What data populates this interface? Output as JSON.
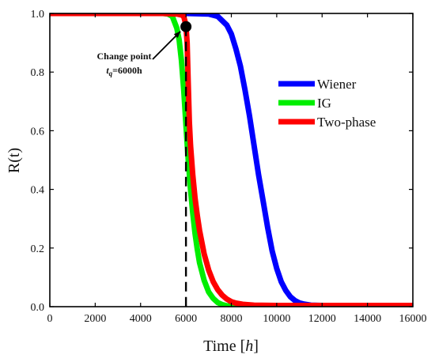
{
  "chart_data": {
    "type": "line",
    "xlabel": "Time",
    "xlabel_unit": "h",
    "ylabel": "R(t)",
    "xlim": [
      0,
      16000
    ],
    "ylim": [
      0,
      1.0
    ],
    "xticks": [
      0,
      2000,
      4000,
      6000,
      8000,
      10000,
      12000,
      14000,
      16000
    ],
    "yticks": [
      "0.0",
      "0.2",
      "0.4",
      "0.6",
      "0.8",
      "1.0"
    ],
    "grid": false,
    "legend_position": "right-middle",
    "series": [
      {
        "name": "Wiener",
        "color": "#0000ff",
        "x": [
          0,
          2000,
          4000,
          6000,
          7000,
          7400,
          7800,
          8000,
          8200,
          8400,
          8600,
          8800,
          9000,
          9200,
          9400,
          9600,
          9800,
          10000,
          10200,
          10400,
          10600,
          10800,
          11000,
          11200,
          11500,
          12000,
          13000,
          16000
        ],
        "y": [
          1.0,
          1.0,
          1.0,
          1.0,
          0.998,
          0.99,
          0.96,
          0.93,
          0.88,
          0.82,
          0.74,
          0.65,
          0.55,
          0.45,
          0.36,
          0.27,
          0.19,
          0.13,
          0.085,
          0.055,
          0.034,
          0.021,
          0.013,
          0.009,
          0.005,
          0.004,
          0.004,
          0.004
        ]
      },
      {
        "name": "IG",
        "color": "#00ee00",
        "x": [
          0,
          2000,
          4000,
          5000,
          5200,
          5400,
          5600,
          5700,
          5800,
          5900,
          6000,
          6100,
          6200,
          6300,
          6400,
          6500,
          6600,
          6800,
          7000,
          7200,
          7400,
          7600,
          7800,
          8000,
          8200,
          9000,
          16000
        ],
        "y": [
          1.0,
          1.0,
          1.0,
          1.0,
          0.998,
          0.99,
          0.95,
          0.91,
          0.84,
          0.74,
          0.62,
          0.5,
          0.4,
          0.32,
          0.25,
          0.195,
          0.15,
          0.09,
          0.05,
          0.028,
          0.014,
          0.007,
          0.003,
          0.0015,
          0.001,
          0.0,
          0.0
        ]
      },
      {
        "name": "Two-phase",
        "color": "#ff0000",
        "x": [
          0,
          2000,
          4000,
          5000,
          5600,
          5800,
          5900,
          6000,
          6050,
          6100,
          6150,
          6200,
          6300,
          6400,
          6500,
          6600,
          6800,
          7000,
          7200,
          7400,
          7600,
          7800,
          8000,
          8200,
          8500,
          9000,
          10000,
          16000
        ],
        "y": [
          1.0,
          1.0,
          1.0,
          1.0,
          0.998,
          0.995,
          0.99,
          0.96,
          0.9,
          0.76,
          0.63,
          0.55,
          0.45,
          0.37,
          0.31,
          0.26,
          0.18,
          0.125,
          0.085,
          0.058,
          0.039,
          0.026,
          0.017,
          0.012,
          0.008,
          0.005,
          0.004,
          0.004
        ]
      }
    ],
    "change_point": {
      "x": 6000,
      "y": 0.955,
      "label_line1": "Change point",
      "label_var": "t",
      "label_sub": "q",
      "label_value": "=6000h"
    }
  }
}
